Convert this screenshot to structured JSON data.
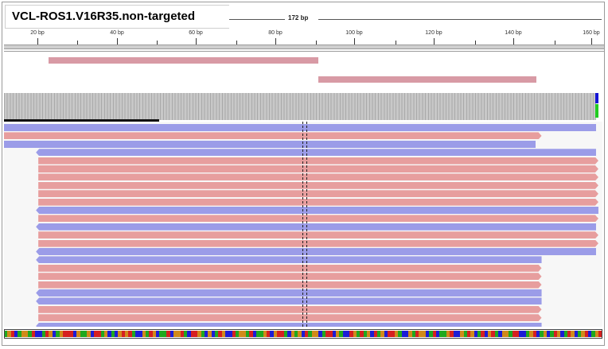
{
  "window": {
    "title": "VCL-ROS1.V16R35.non-targeted"
  },
  "ruler": {
    "span_label": "172 bp",
    "ticks": [
      "20 bp",
      "40 bp",
      "60 bp",
      "80 bp",
      "100 bp",
      "120 bp",
      "140 bp",
      "160 bp"
    ]
  },
  "tracks": {
    "features": [
      "feature-left",
      "feature-right"
    ],
    "coverage": {
      "snp_colors": [
        "#1515d6",
        "#22cc22"
      ]
    },
    "reads": [
      {
        "dir": "rev",
        "start": 0,
        "end": 1.0,
        "arrow": false
      },
      {
        "dir": "fwd",
        "start": 0,
        "end": 0.908,
        "arrow": true
      },
      {
        "dir": "rev",
        "start": 0,
        "end": 0.898,
        "arrow": false
      },
      {
        "dir": "rev",
        "start": 0.054,
        "end": 1.0,
        "arrow": true
      },
      {
        "dir": "fwd",
        "start": 0.058,
        "end": 1.004,
        "arrow": true
      },
      {
        "dir": "fwd",
        "start": 0.058,
        "end": 1.004,
        "arrow": true
      },
      {
        "dir": "fwd",
        "start": 0.058,
        "end": 1.004,
        "arrow": true
      },
      {
        "dir": "fwd",
        "start": 0.058,
        "end": 1.004,
        "arrow": true
      },
      {
        "dir": "fwd",
        "start": 0.058,
        "end": 1.004,
        "arrow": true
      },
      {
        "dir": "fwd",
        "start": 0.058,
        "end": 1.004,
        "arrow": true
      },
      {
        "dir": "rev",
        "start": 0.054,
        "end": 1.004,
        "arrow": true
      },
      {
        "dir": "fwd",
        "start": 0.058,
        "end": 1.004,
        "arrow": true
      },
      {
        "dir": "rev",
        "start": 0.054,
        "end": 1.0,
        "arrow": true
      },
      {
        "dir": "fwd",
        "start": 0.058,
        "end": 1.004,
        "arrow": true
      },
      {
        "dir": "fwd",
        "start": 0.058,
        "end": 1.004,
        "arrow": true
      },
      {
        "dir": "rev",
        "start": 0.054,
        "end": 1.0,
        "arrow": true
      },
      {
        "dir": "rev",
        "start": 0.054,
        "end": 0.908,
        "arrow": true
      },
      {
        "dir": "fwd",
        "start": 0.058,
        "end": 0.908,
        "arrow": true
      },
      {
        "dir": "fwd",
        "start": 0.058,
        "end": 0.908,
        "arrow": true
      },
      {
        "dir": "fwd",
        "start": 0.058,
        "end": 0.908,
        "arrow": true
      },
      {
        "dir": "rev",
        "start": 0.054,
        "end": 0.908,
        "arrow": true
      },
      {
        "dir": "rev",
        "start": 0.054,
        "end": 0.908,
        "arrow": true
      },
      {
        "dir": "fwd",
        "start": 0.058,
        "end": 0.908,
        "arrow": true
      },
      {
        "dir": "fwd",
        "start": 0.058,
        "end": 0.908,
        "arrow": true
      },
      {
        "dir": "rev",
        "start": 0.054,
        "end": 0.908,
        "arrow": true
      }
    ]
  },
  "sequence": {
    "bases": "AGTCAGGATCCATGCAGTTTCGAAGCTTAGCACGTGTACCGATGCAATCGGTACTTGACGCATGCCTAGGATCAAGTCGTTACGAGCTAGGCATTCGACCTGATAGCTAGCTTGACCGATGGCATCAAGTCCGATGCATCGTACGGATTCCAGTCAGCATGCATGCAGTCAGT",
    "colors": {
      "A": "#1fa81f",
      "C": "#1c1cd6",
      "G": "#d18a1a",
      "T": "#d62020"
    }
  }
}
